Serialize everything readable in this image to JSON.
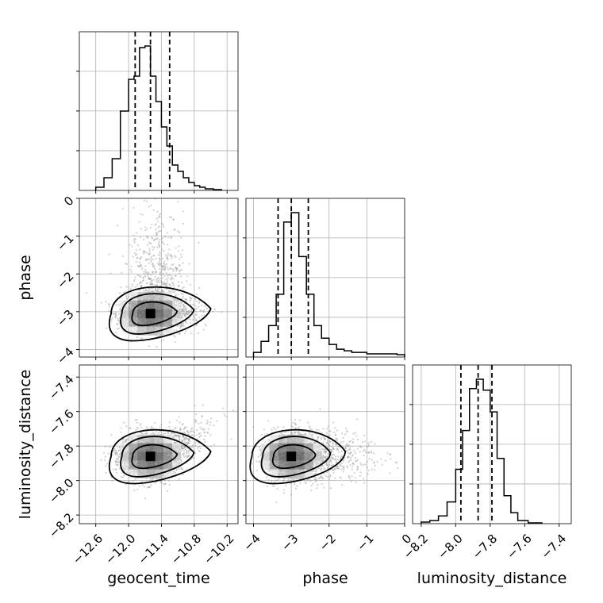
{
  "chart_data": {
    "type": "corner",
    "grid": true,
    "parameters": [
      "geocent_time",
      "phase",
      "luminosity_distance"
    ],
    "axes": {
      "geocent_time": {
        "label": "geocent_time",
        "range": [
          -12.9,
          -10.0
        ],
        "ticks": [
          -12.6,
          -12.0,
          -11.4,
          -10.8,
          -10.2
        ],
        "tick_labels": [
          "−12.6",
          "−12.0",
          "−11.4",
          "−10.8",
          "−10.2"
        ]
      },
      "phase": {
        "label": "phase",
        "range": [
          -4.2,
          0.0
        ],
        "ticks": [
          -4,
          -3,
          -2,
          -1,
          0
        ],
        "tick_labels": [
          "−4",
          "−3",
          "−2",
          "−1",
          "0"
        ]
      },
      "luminosity_distance": {
        "label": "luminosity_distance",
        "range": [
          -8.25,
          -7.33
        ],
        "ticks": [
          -8.2,
          -8.0,
          -7.8,
          -7.6,
          -7.4
        ],
        "tick_labels": [
          "−8.2",
          "−8.0",
          "−7.8",
          "−7.6",
          "−7.4"
        ]
      }
    },
    "histograms": [
      {
        "parameter": "geocent_time",
        "bin_edges": [
          -12.6,
          -12.45,
          -12.3,
          -12.15,
          -12.0,
          -11.9,
          -11.8,
          -11.7,
          -11.6,
          -11.5,
          -11.4,
          -11.3,
          -11.2,
          -11.1,
          -11.0,
          -10.9,
          -10.8,
          -10.7,
          -10.6,
          -10.45,
          -10.3
        ],
        "counts": [
          2,
          8,
          20,
          50,
          70,
          72,
          90,
          91,
          72,
          56,
          40,
          28,
          16,
          12,
          8,
          5,
          3,
          2,
          1,
          0.5
        ],
        "quantiles": [
          -11.88,
          -11.6,
          -11.25
        ]
      },
      {
        "parameter": "phase",
        "bin_edges": [
          -4.0,
          -3.8,
          -3.6,
          -3.4,
          -3.2,
          -3.0,
          -2.8,
          -2.6,
          -2.4,
          -2.2,
          -2.0,
          -1.8,
          -1.6,
          -1.4,
          -1.2,
          -1.0,
          -0.8,
          -0.6,
          -0.4,
          -0.2,
          0.0
        ],
        "counts": [
          3,
          10,
          20,
          40,
          86,
          92,
          64,
          40,
          20,
          12,
          8,
          5,
          4,
          3,
          3,
          2,
          2,
          2,
          2,
          1.5
        ],
        "quantiles": [
          -3.35,
          -3.0,
          -2.55
        ]
      },
      {
        "parameter": "luminosity_distance",
        "bin_edges": [
          -8.2,
          -8.15,
          -8.1,
          -8.05,
          -8.0,
          -7.96,
          -7.92,
          -7.88,
          -7.84,
          -7.8,
          -7.76,
          -7.72,
          -7.68,
          -7.64,
          -7.58,
          -7.5
        ],
        "counts": [
          1,
          2,
          5,
          14,
          35,
          60,
          87,
          93,
          86,
          72,
          42,
          18,
          7,
          2,
          0.5
        ],
        "quantiles": [
          -7.97,
          -7.87,
          -7.79
        ]
      }
    ],
    "scatter_panels": [
      {
        "x": "geocent_time",
        "y": "phase",
        "center": [
          -11.6,
          -3.05
        ]
      },
      {
        "x": "geocent_time",
        "y": "luminosity_distance",
        "center": [
          -11.6,
          -7.86
        ]
      },
      {
        "x": "phase",
        "y": "luminosity_distance",
        "center": [
          -3.0,
          -7.86
        ]
      }
    ],
    "colors": {
      "line": "#000000",
      "points": "#9a9a9a",
      "grid": "#b0b0b0"
    }
  }
}
